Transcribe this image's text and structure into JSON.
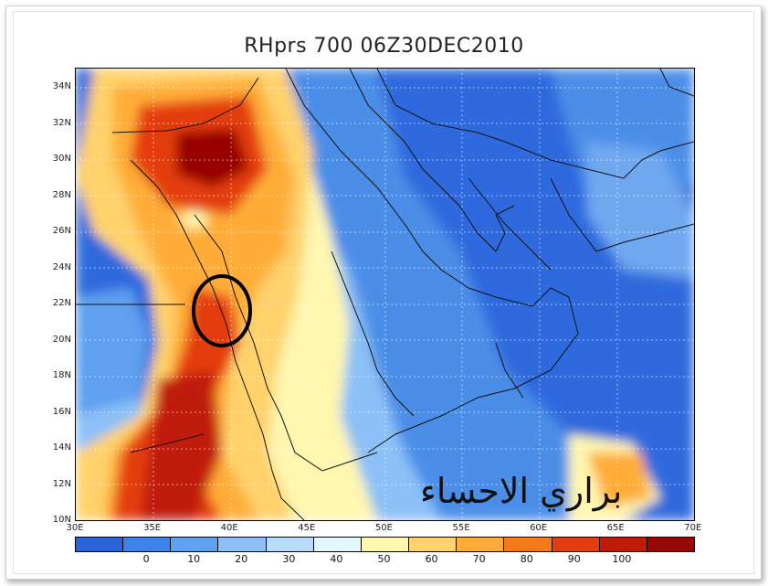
{
  "title": "RHprs 700 06Z30DEC2010",
  "latitude_labels": [
    "34N",
    "32N",
    "30N",
    "28N",
    "26N",
    "24N",
    "22N",
    "20N",
    "18N",
    "16N",
    "14N",
    "12N",
    "10N"
  ],
  "longitude_labels": [
    "30E",
    "35E",
    "40E",
    "45E",
    "50E",
    "55E",
    "60E",
    "65E",
    "70E"
  ],
  "colorbar": {
    "colors": [
      "#2c64d8",
      "#3c82e8",
      "#5fa0f0",
      "#8cc0f6",
      "#b8dcfb",
      "#e6f6ff",
      "#fff6b0",
      "#ffd26c",
      "#ffad37",
      "#f77a1a",
      "#e43d11",
      "#c01a08",
      "#980606"
    ],
    "labels": [
      "0",
      "10",
      "20",
      "30",
      "40",
      "50",
      "60",
      "70",
      "80",
      "90",
      "100"
    ]
  },
  "annotation": {
    "shape": "ellipse",
    "color": "#000000"
  },
  "watermark": "براري الاحساء"
}
